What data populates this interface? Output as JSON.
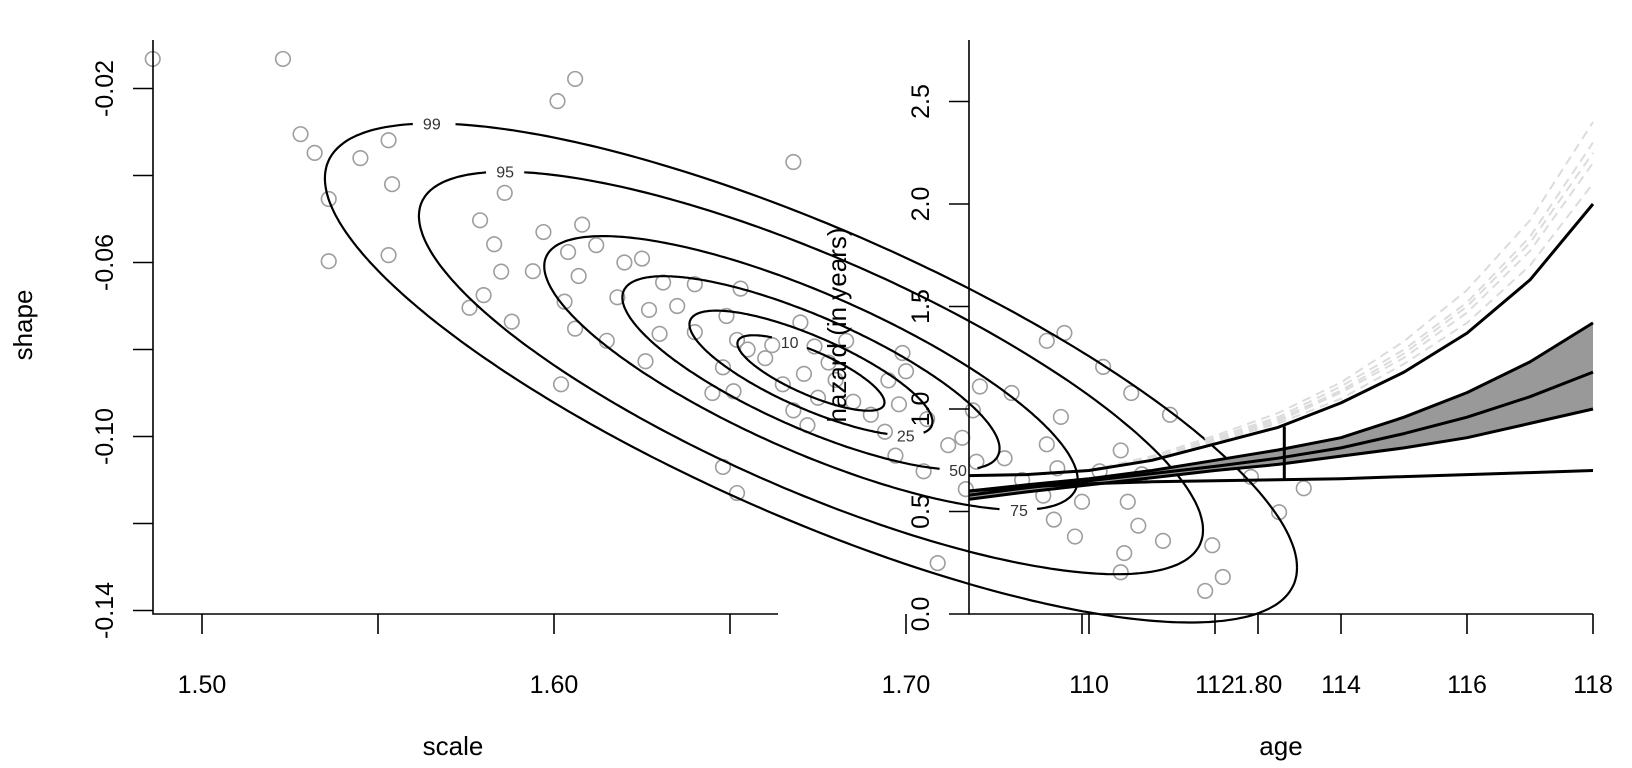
{
  "chart_data": [
    {
      "type": "scatter",
      "xlabel": "scale",
      "ylabel": "shape",
      "xlim": [
        1.472,
        1.827
      ],
      "ylim": [
        -0.141,
        -0.009
      ],
      "xticks": [
        1.5,
        1.55,
        1.6,
        1.65,
        1.7,
        1.75,
        1.8
      ],
      "xtick_labels": [
        "1.50",
        "",
        "1.60",
        "",
        "1.70",
        "",
        "1.80"
      ],
      "yticks": [
        -0.02,
        -0.04,
        -0.06,
        -0.08,
        -0.1,
        -0.12,
        -0.14
      ],
      "ytick_labels": [
        "-0.02",
        "",
        "-0.06",
        "",
        "-0.10",
        "",
        "-0.14"
      ],
      "grid": false,
      "point_color": "#9e9e9e",
      "contour_color": "#000000",
      "contours": {
        "center": [
          1.673,
          -0.0854
        ],
        "sd": [
          0.0455,
          0.0189
        ],
        "correlation": -0.78,
        "levels": [
          10,
          25,
          50,
          75,
          95,
          99
        ],
        "level_labels": [
          "10",
          "25",
          "50",
          "75",
          "95",
          "99"
        ]
      },
      "points": [
        [
          1.486,
          -0.0132
        ],
        [
          1.523,
          -0.0132
        ],
        [
          1.606,
          -0.0178
        ],
        [
          1.601,
          -0.0229
        ],
        [
          1.528,
          -0.0305
        ],
        [
          1.532,
          -0.0348
        ],
        [
          1.545,
          -0.036
        ],
        [
          1.553,
          -0.0319
        ],
        [
          1.536,
          -0.0454
        ],
        [
          1.554,
          -0.042
        ],
        [
          1.668,
          -0.0369
        ],
        [
          1.813,
          -0.1119
        ],
        [
          1.806,
          -0.1174
        ],
        [
          1.785,
          -0.1355
        ],
        [
          1.79,
          -0.1323
        ],
        [
          1.761,
          -0.1312
        ],
        [
          1.709,
          -0.1291
        ],
        [
          1.798,
          -0.1093
        ],
        [
          1.802,
          -0.1052
        ],
        [
          1.536,
          -0.0597
        ],
        [
          1.553,
          -0.0583
        ],
        [
          1.576,
          -0.0704
        ],
        [
          1.588,
          -0.0736
        ],
        [
          1.602,
          -0.088
        ],
        [
          1.648,
          -0.107
        ],
        [
          1.652,
          -0.113
        ],
        [
          1.745,
          -0.0762
        ],
        [
          1.764,
          -0.09
        ],
        [
          1.775,
          -0.095
        ],
        [
          1.74,
          -0.078
        ],
        [
          1.756,
          -0.084
        ],
        [
          1.787,
          -0.125
        ],
        [
          1.773,
          -0.124
        ],
        [
          1.58,
          -0.0675
        ],
        [
          1.585,
          -0.0621
        ],
        [
          1.583,
          -0.0558
        ],
        [
          1.579,
          -0.0503
        ],
        [
          1.586,
          -0.044
        ],
        [
          1.606,
          -0.0752
        ],
        [
          1.603,
          -0.069
        ],
        [
          1.607,
          -0.0631
        ],
        [
          1.604,
          -0.0576
        ],
        [
          1.608,
          -0.0513
        ],
        [
          1.626,
          -0.0827
        ],
        [
          1.63,
          -0.0764
        ],
        [
          1.627,
          -0.0709
        ],
        [
          1.631,
          -0.0646
        ],
        [
          1.625,
          -0.0591
        ],
        [
          1.651,
          -0.0896
        ],
        [
          1.648,
          -0.0841
        ],
        [
          1.652,
          -0.0778
        ],
        [
          1.649,
          -0.0723
        ],
        [
          1.653,
          -0.066
        ],
        [
          1.672,
          -0.0974
        ],
        [
          1.675,
          -0.0911
        ],
        [
          1.671,
          -0.0856
        ],
        [
          1.674,
          -0.0793
        ],
        [
          1.67,
          -0.0738
        ],
        [
          1.697,
          -0.1044
        ],
        [
          1.694,
          -0.0989
        ],
        [
          1.698,
          -0.0926
        ],
        [
          1.695,
          -0.0871
        ],
        [
          1.699,
          -0.0808
        ],
        [
          1.717,
          -0.1121
        ],
        [
          1.72,
          -0.1058
        ],
        [
          1.716,
          -0.1003
        ],
        [
          1.719,
          -0.094
        ],
        [
          1.721,
          -0.0885
        ],
        [
          1.742,
          -0.1191
        ],
        [
          1.739,
          -0.1136
        ],
        [
          1.743,
          -0.1073
        ],
        [
          1.74,
          -0.1018
        ],
        [
          1.744,
          -0.0955
        ],
        [
          1.762,
          -0.1268
        ],
        [
          1.766,
          -0.1205
        ],
        [
          1.763,
          -0.115
        ],
        [
          1.767,
          -0.1087
        ],
        [
          1.761,
          -0.1032
        ],
        [
          1.66,
          -0.082
        ],
        [
          1.665,
          -0.088
        ],
        [
          1.68,
          -0.087
        ],
        [
          1.685,
          -0.092
        ],
        [
          1.662,
          -0.079
        ],
        [
          1.69,
          -0.095
        ],
        [
          1.655,
          -0.08
        ],
        [
          1.678,
          -0.083
        ],
        [
          1.64,
          -0.076
        ],
        [
          1.706,
          -0.096
        ],
        [
          1.635,
          -0.07
        ],
        [
          1.712,
          -0.102
        ],
        [
          1.618,
          -0.068
        ],
        [
          1.728,
          -0.105
        ],
        [
          1.645,
          -0.09
        ],
        [
          1.7,
          -0.085
        ],
        [
          1.62,
          -0.06
        ],
        [
          1.733,
          -0.11
        ],
        [
          1.668,
          -0.094
        ],
        [
          1.683,
          -0.078
        ],
        [
          1.612,
          -0.056
        ],
        [
          1.75,
          -0.115
        ],
        [
          1.594,
          -0.062
        ],
        [
          1.755,
          -0.108
        ],
        [
          1.64,
          -0.065
        ],
        [
          1.705,
          -0.108
        ],
        [
          1.615,
          -0.078
        ],
        [
          1.73,
          -0.09
        ],
        [
          1.597,
          -0.053
        ],
        [
          1.748,
          -0.123
        ]
      ]
    },
    {
      "type": "line",
      "xlabel": "age",
      "ylabel": "hazard (in years)",
      "xlim": [
        108.1,
        118
      ],
      "ylim": [
        0,
        2.8
      ],
      "xticks": [
        110,
        112,
        114,
        116,
        118
      ],
      "xtick_labels": [
        "110",
        "112",
        "114",
        "116",
        "118"
      ],
      "yticks": [
        0,
        0.5,
        1.0,
        1.5,
        2.0,
        2.5
      ],
      "ytick_labels": [
        "0.0",
        "0.5",
        "1.0",
        "1.5",
        "2.0",
        "2.5"
      ],
      "grid": false,
      "band_fill": "#999999",
      "dashed_color": "#dcdcdc",
      "x": [
        108.1,
        109,
        110,
        111,
        112,
        113,
        114,
        115,
        116,
        117,
        118
      ],
      "series": [
        {
          "style": "solid",
          "values": [
            0.675,
            0.68,
            0.7,
            0.75,
            0.83,
            0.91,
            1.03,
            1.18,
            1.37,
            1.63,
            2.0
          ]
        },
        {
          "style": "solid",
          "role": "band-upper",
          "values": [
            0.6,
            0.63,
            0.66,
            0.7,
            0.75,
            0.8,
            0.86,
            0.96,
            1.08,
            1.23,
            1.42
          ]
        },
        {
          "style": "solid",
          "role": "median",
          "values": [
            0.58,
            0.615,
            0.65,
            0.685,
            0.72,
            0.76,
            0.81,
            0.88,
            0.96,
            1.06,
            1.18
          ]
        },
        {
          "style": "solid",
          "role": "band-lower",
          "values": [
            0.56,
            0.595,
            0.63,
            0.665,
            0.7,
            0.73,
            0.77,
            0.81,
            0.86,
            0.93,
            1.0
          ]
        },
        {
          "style": "solid",
          "values": [
            0.6,
            0.62,
            0.635,
            0.645,
            0.65,
            0.655,
            0.66,
            0.67,
            0.68,
            0.69,
            0.7
          ]
        }
      ],
      "dashed_x": [
        110,
        111,
        112,
        113,
        114,
        115,
        116,
        117,
        118
      ],
      "dashed_series": [
        [
          0.7,
          0.75,
          0.84,
          0.93,
          1.05,
          1.22,
          1.42,
          1.7,
          2.1
        ],
        [
          0.7,
          0.76,
          0.85,
          0.94,
          1.08,
          1.25,
          1.47,
          1.77,
          2.2
        ],
        [
          0.7,
          0.76,
          0.85,
          0.95,
          1.09,
          1.27,
          1.5,
          1.81,
          2.25
        ],
        [
          0.7,
          0.76,
          0.86,
          0.96,
          1.11,
          1.29,
          1.52,
          1.84,
          2.3
        ],
        [
          0.7,
          0.77,
          0.87,
          0.98,
          1.13,
          1.33,
          1.58,
          1.92,
          2.4
        ]
      ],
      "vertical_segment": {
        "x": 113.1,
        "y": [
          0.655,
          0.915
        ]
      }
    }
  ]
}
